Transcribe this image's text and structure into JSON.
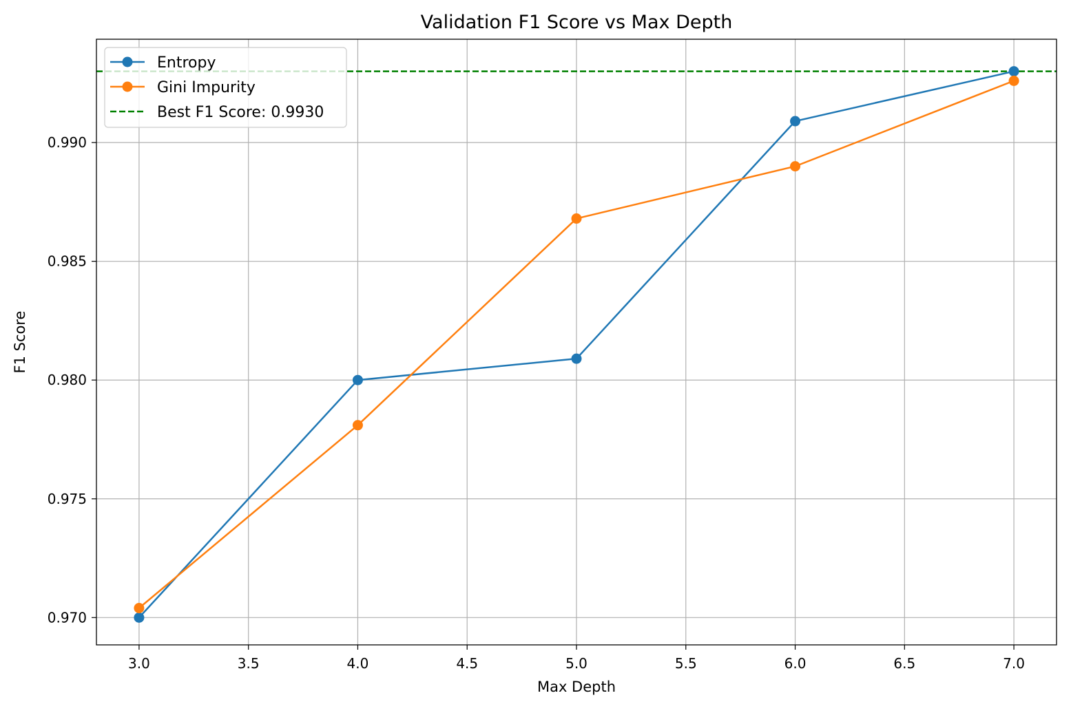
{
  "chart_data": {
    "type": "line",
    "title": "Validation F1 Score vs Max Depth",
    "xlabel": "Max Depth",
    "ylabel": "F1 Score",
    "xlim": [
      2.805,
      7.195
    ],
    "ylim": [
      0.96885,
      0.99435
    ],
    "xticks": [
      3.0,
      3.5,
      4.0,
      4.5,
      5.0,
      5.5,
      6.0,
      6.5,
      7.0
    ],
    "xtick_labels": [
      "3.0",
      "3.5",
      "4.0",
      "4.5",
      "5.0",
      "5.5",
      "6.0",
      "6.5",
      "7.0"
    ],
    "yticks": [
      0.97,
      0.975,
      0.98,
      0.985,
      0.99
    ],
    "ytick_labels": [
      "0.970",
      "0.975",
      "0.980",
      "0.985",
      "0.990"
    ],
    "grid": true,
    "legend_position": "top-left",
    "x": [
      3,
      4,
      5,
      6,
      7
    ],
    "series": [
      {
        "name": "Entropy",
        "color": "#1f77b4",
        "marker": "circle",
        "values": [
          0.97,
          0.98,
          0.9809,
          0.9909,
          0.993
        ]
      },
      {
        "name": "Gini Impurity",
        "color": "#ff7f0e",
        "marker": "circle",
        "values": [
          0.9704,
          0.9781,
          0.9868,
          0.989,
          0.9926
        ]
      }
    ],
    "reference_lines": [
      {
        "name": "Best F1 Score: 0.9930",
        "orientation": "horizontal",
        "value": 0.993,
        "color": "#008000",
        "style": "dashed"
      }
    ]
  }
}
